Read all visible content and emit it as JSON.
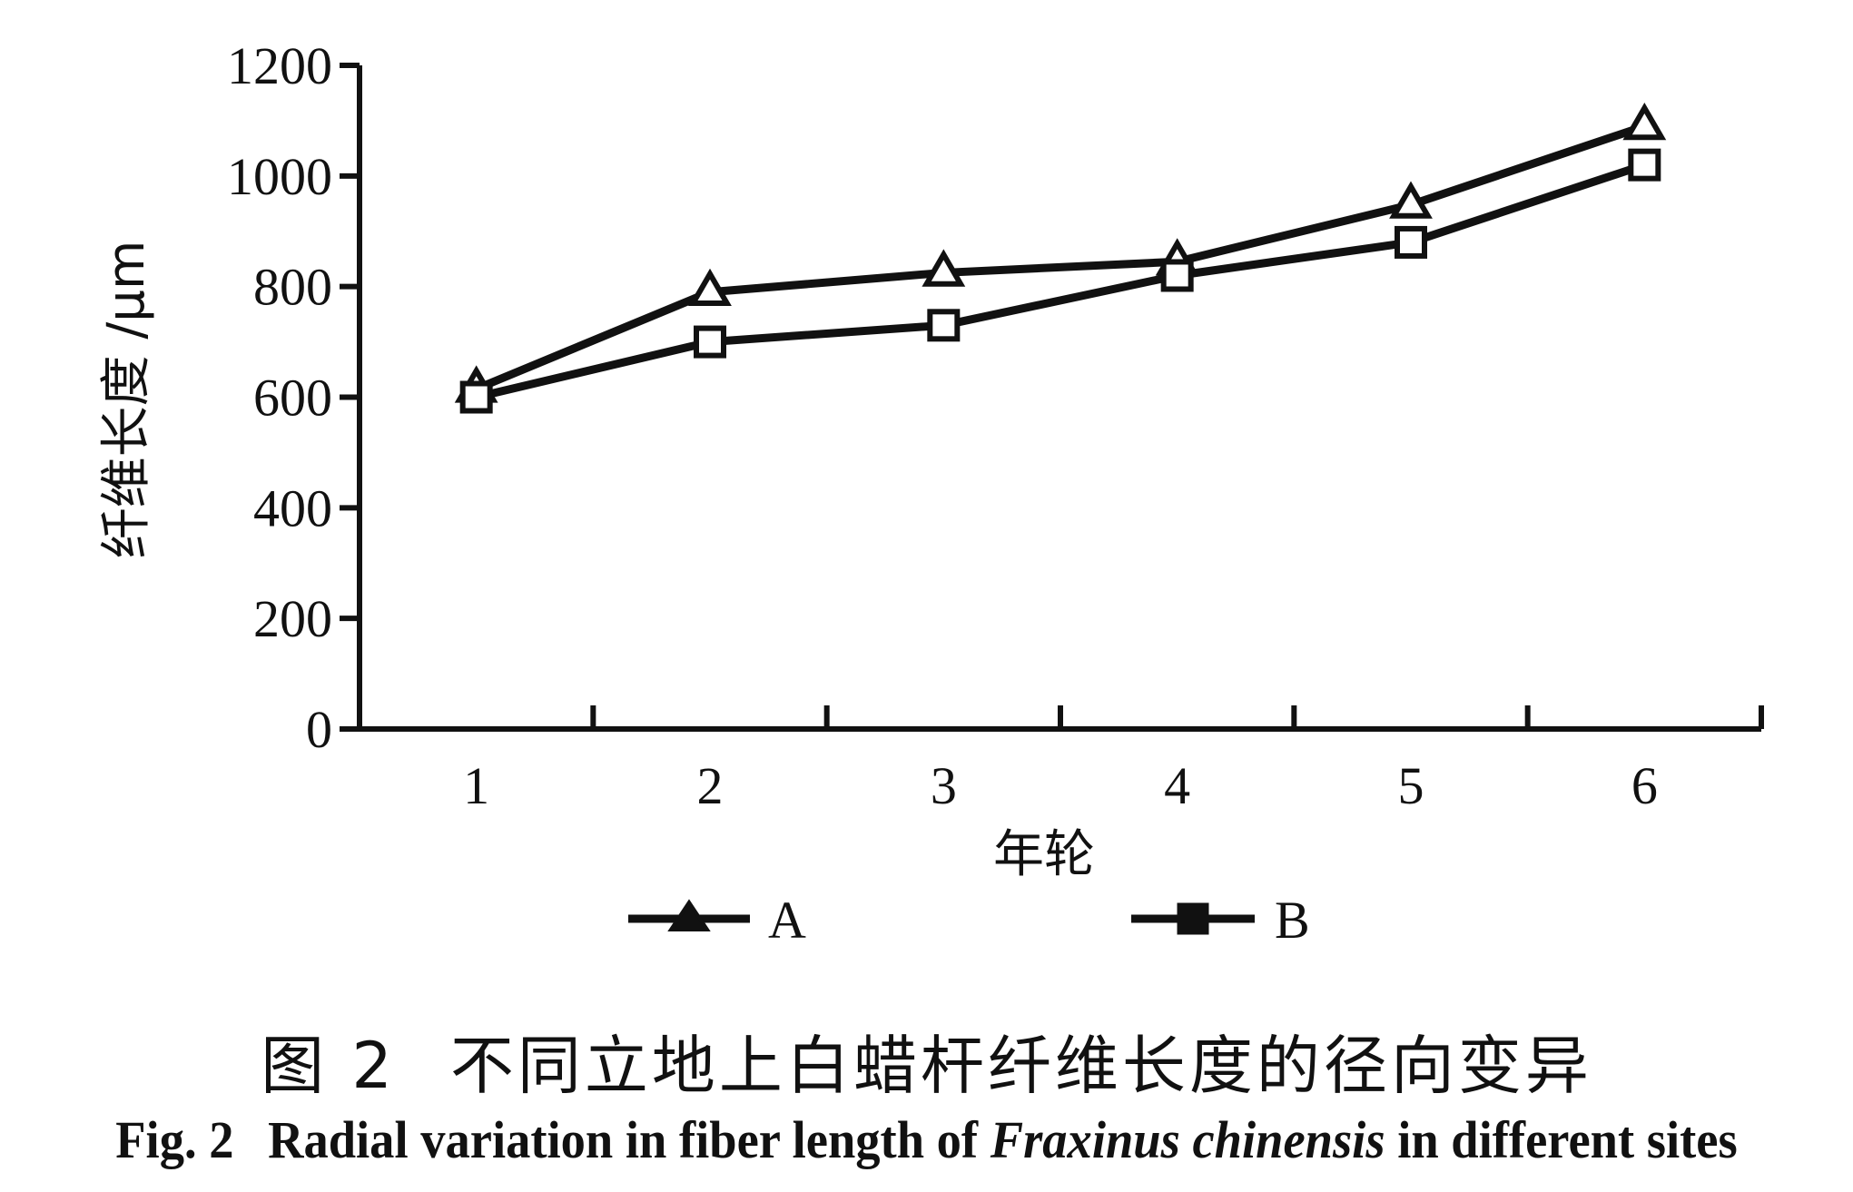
{
  "chart_data": {
    "type": "line",
    "xlabel": "年轮",
    "ylabel": "纤维长度 /μm",
    "categories": [
      "1",
      "2",
      "3",
      "4",
      "5",
      "6"
    ],
    "ylim": [
      0,
      1200
    ],
    "yticks": [
      "0",
      "200",
      "400",
      "600",
      "800",
      "1000",
      "1200"
    ],
    "grid": false,
    "legend_position": "bottom",
    "series": [
      {
        "name": "A",
        "marker": "triangle",
        "values": [
          615,
          790,
          825,
          845,
          948,
          1090
        ]
      },
      {
        "name": "B",
        "marker": "square",
        "values": [
          600,
          700,
          730,
          820,
          880,
          1020
        ]
      }
    ]
  },
  "caption": {
    "zh_number": "图 2",
    "zh_title": "不同立地上白蜡杆纤维长度的径向变异",
    "en_number": "Fig. 2",
    "en_title_pre": "Radial variation in fiber length of",
    "en_species": "Fraxinus chinensis",
    "en_title_post": "in different sites"
  },
  "colors": {
    "line": "#111111",
    "background": "#ffffff"
  }
}
